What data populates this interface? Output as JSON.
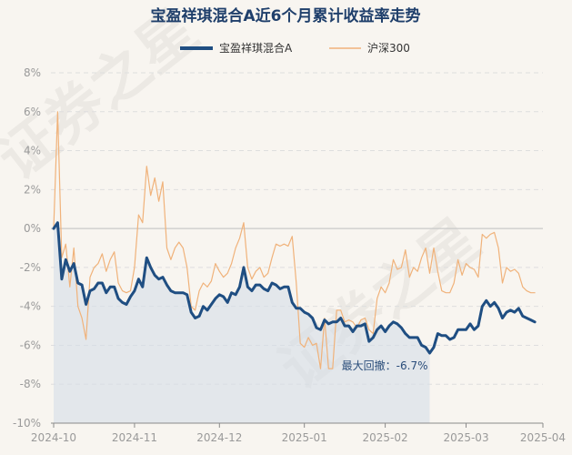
{
  "chart_data": {
    "type": "line",
    "title": "宝盈祥琪混合A近6个月累计收益率走势",
    "series": [
      {
        "name": "宝盈祥琪混合A",
        "color": "#1f4e82",
        "values": [
          0.0,
          0.3,
          -2.6,
          -1.6,
          -2.2,
          -1.8,
          -2.8,
          -2.9,
          -3.9,
          -3.2,
          -3.1,
          -2.8,
          -2.8,
          -3.3,
          -3.0,
          -3.0,
          -3.6,
          -3.8,
          -3.9,
          -3.5,
          -3.2,
          -2.6,
          -3.0,
          -1.5,
          -2.0,
          -2.4,
          -2.6,
          -2.5,
          -2.9,
          -3.2,
          -3.3,
          -3.3,
          -3.3,
          -3.4,
          -4.3,
          -4.6,
          -4.5,
          -4.0,
          -4.2,
          -3.9,
          -3.6,
          -3.4,
          -3.5,
          -3.8,
          -3.3,
          -3.4,
          -3.0,
          -2.0,
          -3.0,
          -3.2,
          -2.9,
          -2.9,
          -3.1,
          -3.2,
          -2.8,
          -2.9,
          -3.1,
          -3.0,
          -3.0,
          -3.8,
          -4.1,
          -4.1,
          -4.3,
          -4.4,
          -4.6,
          -5.1,
          -5.2,
          -4.7,
          -4.9,
          -4.8,
          -4.8,
          -4.6,
          -5.0,
          -5.0,
          -5.3,
          -5.0,
          -5.0,
          -4.9,
          -5.8,
          -5.6,
          -5.2,
          -5.0,
          -5.3,
          -5.0,
          -4.8,
          -4.9,
          -5.1,
          -5.4,
          -5.6,
          -5.6,
          -5.6,
          -6.0,
          -6.1,
          -6.4,
          -6.1,
          -5.4,
          -5.5,
          -5.5,
          -5.7,
          -5.6,
          -5.2,
          -5.2,
          -5.2,
          -4.9,
          -5.2,
          -5.0,
          -4.0,
          -3.7,
          -4.0,
          -3.8,
          -4.1,
          -4.6,
          -4.3,
          -4.2,
          -4.3,
          -4.1,
          -4.5,
          -4.6,
          -4.7,
          -4.8
        ]
      },
      {
        "name": "沪深300",
        "color": "#f0b27a",
        "values": [
          0.0,
          6.0,
          -1.5,
          -0.8,
          -3.0,
          -1.0,
          -4.0,
          -4.6,
          -5.7,
          -2.5,
          -2.0,
          -1.8,
          -1.3,
          -2.2,
          -1.6,
          -1.2,
          -2.8,
          -3.2,
          -3.3,
          -3.2,
          -2.0,
          0.7,
          0.3,
          3.2,
          1.7,
          2.6,
          1.4,
          2.4,
          -1.0,
          -1.6,
          -1.0,
          -0.7,
          -1.0,
          -2.0,
          -4.0,
          -4.2,
          -3.2,
          -2.8,
          -3.0,
          -2.7,
          -1.8,
          -2.2,
          -2.5,
          -2.3,
          -1.8,
          -1.0,
          -0.5,
          0.3,
          -2.0,
          -2.6,
          -2.2,
          -2.0,
          -2.5,
          -2.3,
          -1.5,
          -0.8,
          -0.9,
          -0.8,
          -0.9,
          -0.4,
          -2.8,
          -5.9,
          -6.1,
          -5.6,
          -6.0,
          -5.9,
          -7.2,
          -4.6,
          -7.2,
          -7.2,
          -4.2,
          -4.2,
          -4.8,
          -4.7,
          -4.8,
          -5.1,
          -4.7,
          -4.6,
          -5.2,
          -5.4,
          -3.6,
          -3.0,
          -3.3,
          -2.8,
          -1.6,
          -2.1,
          -2.0,
          -1.1,
          -2.5,
          -2.0,
          -2.2,
          -1.5,
          -1.0,
          -2.3,
          -1.0,
          -2.2,
          -3.2,
          -3.3,
          -3.3,
          -2.8,
          -1.6,
          -2.4,
          -1.8,
          -2.0,
          -2.1,
          -2.5,
          -0.3,
          -0.5,
          -0.3,
          -0.2,
          -1.0,
          -2.8,
          -2.0,
          -2.2,
          -2.1,
          -2.3,
          -3.0,
          -3.2,
          -3.3,
          -3.3
        ]
      }
    ],
    "y_ticks": [
      "8%",
      "6%",
      "4%",
      "2%",
      "0%",
      "-2%",
      "-4%",
      "-6%",
      "-8%",
      "-10%"
    ],
    "y_tick_values": [
      8,
      6,
      4,
      2,
      0,
      -2,
      -4,
      -6,
      -8,
      -10
    ],
    "ylim": [
      -10,
      8
    ],
    "x_ticks": [
      "2024-10",
      "2024-11",
      "2024-12",
      "2025-01",
      "2025-02",
      "2025-03",
      "2025-04"
    ],
    "x_tick_positions": [
      0,
      20,
      41,
      62,
      82,
      102,
      121
    ],
    "x_count": 121,
    "drawdown": {
      "label": "最大回撤：-6.7%",
      "start_index": 0,
      "end_index": 93
    },
    "watermark": "证券之星",
    "grid": true,
    "legend": "top-center"
  }
}
